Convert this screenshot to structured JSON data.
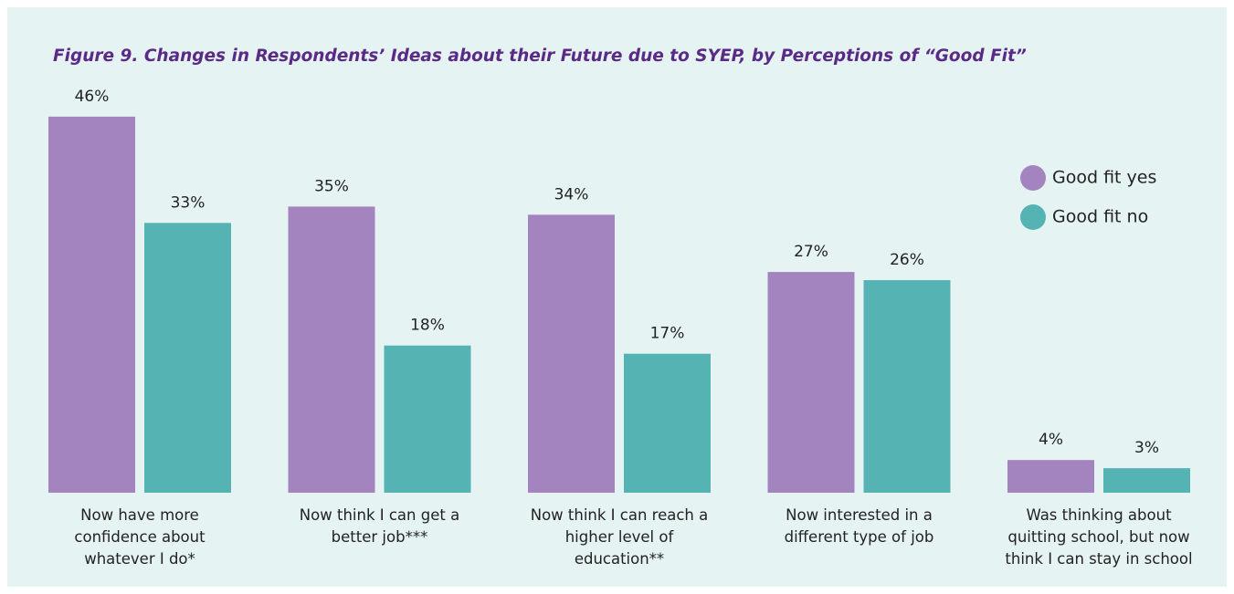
{
  "chart_data": {
    "type": "bar",
    "title": "Figure 9. Changes in Respondents’ Ideas about their Future due to SYEP, by Perceptions of “Good Fit”",
    "categories": [
      "Now have more confidence about whatever I do*",
      "Now think I can get a better job***",
      "Now think I can reach a higher level of education**",
      "Now interested in a different type of job",
      "Was thinking about quitting school, but now think I can stay in school"
    ],
    "series": [
      {
        "name": "Good fit yes",
        "color": "#a384be",
        "values": [
          46,
          35,
          34,
          27,
          4
        ],
        "value_labels": [
          "46%",
          "35%",
          "34%",
          "27%",
          "4%"
        ]
      },
      {
        "name": "Good fit no",
        "color": "#55b4b3",
        "values": [
          33,
          18,
          17,
          26,
          3
        ],
        "value_labels": [
          "33%",
          "18%",
          "17%",
          "26%",
          "3%"
        ]
      }
    ],
    "legend": "right"
  }
}
